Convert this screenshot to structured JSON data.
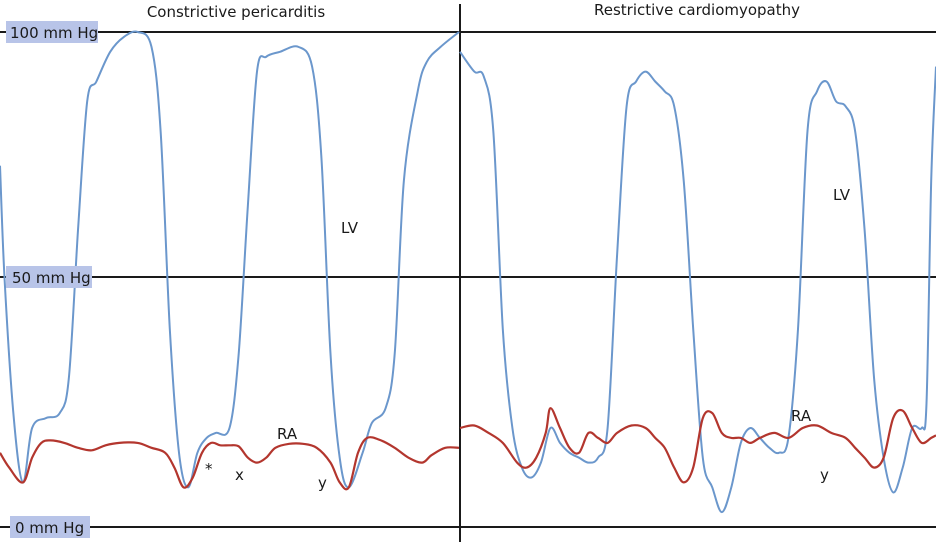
{
  "chart_data": {
    "type": "line",
    "ylim": [
      0,
      100
    ],
    "y_unit": "mm Hg",
    "y_ticks": [
      {
        "value": 100,
        "label": "100 mm Hg"
      },
      {
        "value": 50,
        "label": "50 mm Hg"
      },
      {
        "value": 0,
        "label": "0 mm Hg"
      }
    ],
    "grid": "horizontal lines at tick values",
    "lv_color": "#6b97cc",
    "ra_color": "#b3362e",
    "panels": [
      {
        "title": "Constrictive pericarditis",
        "series": [
          {
            "name": "LV",
            "values": [
              [
                0.0,
                73
              ],
              [
                0.01,
                50
              ],
              [
                0.03,
                22
              ],
              [
                0.05,
                9
              ],
              [
                0.07,
                20
              ],
              [
                0.1,
                22
              ],
              [
                0.13,
                23
              ],
              [
                0.15,
                30
              ],
              [
                0.17,
                60
              ],
              [
                0.19,
                86
              ],
              [
                0.21,
                90
              ],
              [
                0.24,
                96
              ],
              [
                0.27,
                99
              ],
              [
                0.3,
                100
              ],
              [
                0.33,
                97
              ],
              [
                0.35,
                80
              ],
              [
                0.37,
                40
              ],
              [
                0.39,
                15
              ],
              [
                0.41,
                8
              ],
              [
                0.43,
                15
              ],
              [
                0.45,
                18
              ],
              [
                0.47,
                19
              ],
              [
                0.5,
                20
              ],
              [
                0.52,
                35
              ],
              [
                0.54,
                65
              ],
              [
                0.56,
                92
              ],
              [
                0.58,
                95
              ],
              [
                0.61,
                96
              ],
              [
                0.65,
                97
              ],
              [
                0.68,
                93
              ],
              [
                0.7,
                75
              ],
              [
                0.72,
                35
              ],
              [
                0.74,
                14
              ],
              [
                0.76,
                8
              ],
              [
                0.79,
                15
              ],
              [
                0.81,
                21
              ],
              [
                0.84,
                24
              ],
              [
                0.86,
                35
              ],
              [
                0.88,
                70
              ],
              [
                0.91,
                88
              ],
              [
                0.93,
                94
              ],
              [
                0.96,
                97
              ],
              [
                1.0,
                100
              ]
            ]
          },
          {
            "name": "RA",
            "values": [
              [
                0.0,
                15
              ],
              [
                0.02,
                12
              ],
              [
                0.05,
                9
              ],
              [
                0.07,
                14
              ],
              [
                0.09,
                17
              ],
              [
                0.11,
                17.5
              ],
              [
                0.14,
                17
              ],
              [
                0.17,
                16
              ],
              [
                0.2,
                15.5
              ],
              [
                0.23,
                16.5
              ],
              [
                0.26,
                17
              ],
              [
                0.3,
                17
              ],
              [
                0.33,
                16
              ],
              [
                0.36,
                15
              ],
              [
                0.38,
                12
              ],
              [
                0.4,
                8
              ],
              [
                0.42,
                10
              ],
              [
                0.44,
                15
              ],
              [
                0.46,
                17
              ],
              [
                0.48,
                16.5
              ],
              [
                0.5,
                16.5
              ],
              [
                0.52,
                16.3
              ],
              [
                0.54,
                14
              ],
              [
                0.56,
                13
              ],
              [
                0.58,
                14
              ],
              [
                0.6,
                16
              ],
              [
                0.63,
                16.8
              ],
              [
                0.66,
                16.8
              ],
              [
                0.69,
                16
              ],
              [
                0.72,
                13
              ],
              [
                0.74,
                9
              ],
              [
                0.76,
                8
              ],
              [
                0.78,
                15
              ],
              [
                0.8,
                18
              ],
              [
                0.83,
                17.5
              ],
              [
                0.86,
                16
              ],
              [
                0.89,
                14
              ],
              [
                0.92,
                13
              ],
              [
                0.94,
                14.5
              ],
              [
                0.97,
                16
              ],
              [
                1.0,
                16
              ]
            ]
          }
        ],
        "labels": [
          "LV",
          "RA",
          "*",
          "x",
          "y"
        ]
      },
      {
        "title": "Restrictive cardiomyopathy",
        "series": [
          {
            "name": "LV",
            "values": [
              [
                0.0,
                96
              ],
              [
                0.03,
                92
              ],
              [
                0.05,
                91
              ],
              [
                0.07,
                80
              ],
              [
                0.09,
                40
              ],
              [
                0.11,
                20
              ],
              [
                0.13,
                12
              ],
              [
                0.15,
                10
              ],
              [
                0.17,
                13
              ],
              [
                0.19,
                20
              ],
              [
                0.21,
                17
              ],
              [
                0.23,
                15
              ],
              [
                0.25,
                14
              ],
              [
                0.27,
                13
              ],
              [
                0.29,
                14
              ],
              [
                0.31,
                20
              ],
              [
                0.33,
                55
              ],
              [
                0.35,
                85
              ],
              [
                0.37,
                90
              ],
              [
                0.39,
                92
              ],
              [
                0.41,
                90
              ],
              [
                0.43,
                88
              ],
              [
                0.45,
                85
              ],
              [
                0.47,
                70
              ],
              [
                0.49,
                40
              ],
              [
                0.51,
                14
              ],
              [
                0.53,
                8
              ],
              [
                0.55,
                3
              ],
              [
                0.57,
                8
              ],
              [
                0.59,
                17
              ],
              [
                0.61,
                20
              ],
              [
                0.63,
                18
              ],
              [
                0.65,
                16
              ],
              [
                0.67,
                15
              ],
              [
                0.69,
                18
              ],
              [
                0.71,
                40
              ],
              [
                0.73,
                80
              ],
              [
                0.75,
                88
              ],
              [
                0.77,
                90
              ],
              [
                0.79,
                86
              ],
              [
                0.81,
                85
              ],
              [
                0.83,
                80
              ],
              [
                0.85,
                60
              ],
              [
                0.87,
                30
              ],
              [
                0.89,
                14
              ],
              [
                0.91,
                7
              ],
              [
                0.93,
                12
              ],
              [
                0.95,
                20
              ],
              [
                0.97,
                20
              ],
              [
                0.98,
                25
              ],
              [
                0.99,
                70
              ],
              [
                1.0,
                93
              ]
            ]
          },
          {
            "name": "RA",
            "values": [
              [
                0.0,
                20
              ],
              [
                0.03,
                20.5
              ],
              [
                0.06,
                19
              ],
              [
                0.09,
                17
              ],
              [
                0.12,
                13
              ],
              [
                0.14,
                12
              ],
              [
                0.16,
                14
              ],
              [
                0.18,
                19
              ],
              [
                0.19,
                24
              ],
              [
                0.21,
                20
              ],
              [
                0.23,
                16
              ],
              [
                0.25,
                15
              ],
              [
                0.27,
                19
              ],
              [
                0.29,
                18
              ],
              [
                0.31,
                17
              ],
              [
                0.33,
                19
              ],
              [
                0.36,
                20.5
              ],
              [
                0.39,
                20
              ],
              [
                0.41,
                18
              ],
              [
                0.43,
                16
              ],
              [
                0.45,
                12
              ],
              [
                0.47,
                9
              ],
              [
                0.49,
                12
              ],
              [
                0.51,
                22
              ],
              [
                0.53,
                23
              ],
              [
                0.55,
                19
              ],
              [
                0.57,
                18
              ],
              [
                0.59,
                18
              ],
              [
                0.61,
                17
              ],
              [
                0.63,
                18
              ],
              [
                0.66,
                19
              ],
              [
                0.69,
                18
              ],
              [
                0.72,
                20
              ],
              [
                0.75,
                20.5
              ],
              [
                0.78,
                19
              ],
              [
                0.81,
                18
              ],
              [
                0.83,
                16
              ],
              [
                0.85,
                14
              ],
              [
                0.87,
                12
              ],
              [
                0.89,
                14
              ],
              [
                0.91,
                22
              ],
              [
                0.93,
                23.5
              ],
              [
                0.95,
                20
              ],
              [
                0.97,
                17
              ],
              [
                0.99,
                18
              ],
              [
                1.0,
                18.5
              ]
            ]
          }
        ],
        "labels": [
          "LV",
          "RA",
          "y"
        ]
      }
    ]
  }
}
